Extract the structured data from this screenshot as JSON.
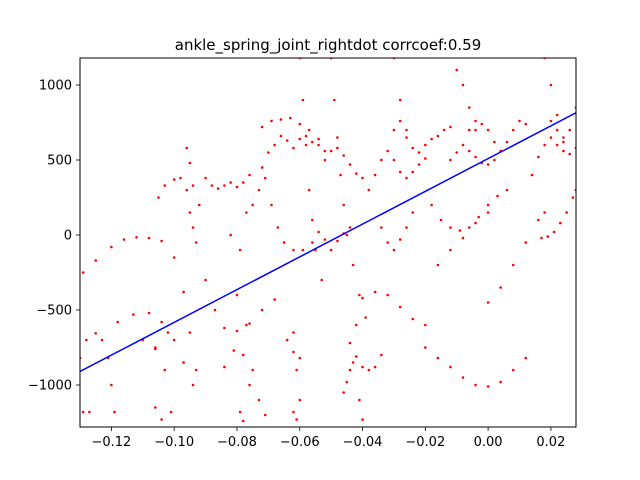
{
  "chart_data": {
    "type": "scatter",
    "title": "ankle_spring_joint_rightdot corrcoef:0.59",
    "xlabel": "",
    "ylabel": "",
    "xlim": [
      -0.13,
      0.028
    ],
    "ylim": [
      -1280,
      1180
    ],
    "xticks": [
      -0.12,
      -0.1,
      -0.08,
      -0.06,
      -0.04,
      -0.02,
      0.0,
      0.02
    ],
    "xtick_labels": [
      "−0.12",
      "−0.10",
      "−0.08",
      "−0.06",
      "−0.04",
      "−0.02",
      "0.00",
      "0.02"
    ],
    "yticks": [
      -1000,
      -500,
      0,
      500,
      1000
    ],
    "ytick_labels": [
      "−1000",
      "−500",
      "0",
      "500",
      "1000"
    ],
    "grid": false,
    "legend": "none",
    "scatter_color": "#ff0000",
    "fit_color": "#0000ff",
    "fit_line": {
      "x": [
        -0.13,
        0.028
      ],
      "y": [
        -910,
        815
      ]
    },
    "series": [
      {
        "values": [
          [
            -0.13,
            -820
          ],
          [
            -0.128,
            -700
          ],
          [
            -0.125,
            -655
          ],
          [
            -0.123,
            -700
          ],
          [
            -0.121,
            -820
          ],
          [
            -0.12,
            -1000
          ],
          [
            -0.119,
            -1180
          ],
          [
            -0.129,
            -1180
          ],
          [
            -0.127,
            -1180
          ],
          [
            -0.129,
            -250
          ],
          [
            -0.125,
            -170
          ],
          [
            -0.12,
            -80
          ],
          [
            -0.116,
            -30
          ],
          [
            -0.112,
            -15
          ],
          [
            -0.108,
            -20
          ],
          [
            -0.104,
            -40
          ],
          [
            -0.1,
            -150
          ],
          [
            -0.097,
            -380
          ],
          [
            -0.095,
            -650
          ],
          [
            -0.093,
            -900
          ],
          [
            -0.118,
            -580
          ],
          [
            -0.113,
            -530
          ],
          [
            -0.108,
            -520
          ],
          [
            -0.104,
            -580
          ],
          [
            -0.1,
            -700
          ],
          [
            -0.097,
            -850
          ],
          [
            -0.094,
            -1000
          ],
          [
            -0.11,
            -700
          ],
          [
            -0.106,
            -750
          ],
          [
            -0.103,
            -900
          ],
          [
            -0.106,
            -1150
          ],
          [
            -0.104,
            -1230
          ],
          [
            -0.106,
            -760
          ],
          [
            -0.102,
            -650
          ],
          [
            -0.101,
            -1180
          ],
          [
            -0.105,
            250
          ],
          [
            -0.103,
            330
          ],
          [
            -0.1,
            370
          ],
          [
            -0.098,
            380
          ],
          [
            -0.096,
            300
          ],
          [
            -0.095,
            150
          ],
          [
            -0.094,
            50
          ],
          [
            -0.093,
            -50
          ],
          [
            -0.09,
            -300
          ],
          [
            -0.087,
            -500
          ],
          [
            -0.084,
            -620
          ],
          [
            -0.08,
            -640
          ],
          [
            -0.076,
            -590
          ],
          [
            -0.072,
            -500
          ],
          [
            -0.068,
            -430
          ],
          [
            -0.096,
            580
          ],
          [
            -0.095,
            480
          ],
          [
            -0.094,
            330
          ],
          [
            -0.092,
            200
          ],
          [
            -0.09,
            380
          ],
          [
            -0.088,
            330
          ],
          [
            -0.086,
            310
          ],
          [
            -0.084,
            330
          ],
          [
            -0.082,
            350
          ],
          [
            -0.08,
            320
          ],
          [
            -0.078,
            350
          ],
          [
            -0.076,
            400
          ],
          [
            -0.082,
            0
          ],
          [
            -0.079,
            -100
          ],
          [
            -0.077,
            150
          ],
          [
            -0.075,
            200
          ],
          [
            -0.073,
            300
          ],
          [
            -0.071,
            380
          ],
          [
            -0.069,
            200
          ],
          [
            -0.067,
            50
          ],
          [
            -0.065,
            -50
          ],
          [
            -0.062,
            -100
          ],
          [
            -0.059,
            -100
          ],
          [
            -0.056,
            -50
          ],
          [
            -0.084,
            -880
          ],
          [
            -0.081,
            -770
          ],
          [
            -0.078,
            -800
          ],
          [
            -0.076,
            -1000
          ],
          [
            -0.079,
            -1180
          ],
          [
            -0.078,
            -1240
          ],
          [
            -0.08,
            -400
          ],
          [
            -0.077,
            -600
          ],
          [
            -0.075,
            -900
          ],
          [
            -0.073,
            -1100
          ],
          [
            -0.071,
            -1200
          ],
          [
            -0.072,
            450
          ],
          [
            -0.07,
            550
          ],
          [
            -0.068,
            600
          ],
          [
            -0.066,
            660
          ],
          [
            -0.064,
            630
          ],
          [
            -0.062,
            580
          ],
          [
            -0.06,
            640
          ],
          [
            -0.058,
            660
          ],
          [
            -0.056,
            620
          ],
          [
            -0.054,
            600
          ],
          [
            -0.052,
            560
          ],
          [
            -0.072,
            720
          ],
          [
            -0.069,
            760
          ],
          [
            -0.066,
            770
          ],
          [
            -0.063,
            780
          ],
          [
            -0.06,
            740
          ],
          [
            -0.057,
            700
          ],
          [
            -0.054,
            640
          ],
          [
            -0.062,
            -650
          ],
          [
            -0.061,
            -900
          ],
          [
            -0.06,
            -1100
          ],
          [
            -0.061,
            -1230
          ],
          [
            -0.062,
            -1180
          ],
          [
            -0.064,
            -700
          ],
          [
            -0.062,
            -780
          ],
          [
            -0.06,
            -820
          ],
          [
            -0.06,
            1180
          ],
          [
            -0.059,
            900
          ],
          [
            -0.058,
            600
          ],
          [
            -0.057,
            300
          ],
          [
            -0.056,
            100
          ],
          [
            -0.055,
            -100
          ],
          [
            -0.053,
            -300
          ],
          [
            -0.05,
            1180
          ],
          [
            -0.049,
            900
          ],
          [
            -0.048,
            650
          ],
          [
            -0.047,
            400
          ],
          [
            -0.046,
            200
          ],
          [
            -0.045,
            0
          ],
          [
            -0.043,
            -200
          ],
          [
            -0.041,
            -400
          ],
          [
            -0.039,
            -550
          ],
          [
            -0.054,
            20
          ],
          [
            -0.052,
            -30
          ],
          [
            -0.05,
            -100
          ],
          [
            -0.048,
            -40
          ],
          [
            -0.046,
            10
          ],
          [
            -0.044,
            50
          ],
          [
            -0.052,
            500
          ],
          [
            -0.05,
            560
          ],
          [
            -0.048,
            580
          ],
          [
            -0.046,
            530
          ],
          [
            -0.044,
            470
          ],
          [
            -0.042,
            410
          ],
          [
            -0.04,
            380
          ],
          [
            -0.046,
            -1050
          ],
          [
            -0.045,
            -980
          ],
          [
            -0.044,
            -900
          ],
          [
            -0.043,
            -850
          ],
          [
            -0.042,
            -600
          ],
          [
            -0.041,
            -1100
          ],
          [
            -0.04,
            -1230
          ],
          [
            -0.044,
            -720
          ],
          [
            -0.042,
            -810
          ],
          [
            -0.04,
            -880
          ],
          [
            -0.038,
            -900
          ],
          [
            -0.036,
            -880
          ],
          [
            -0.034,
            -800
          ],
          [
            -0.04,
            -420
          ],
          [
            -0.036,
            -380
          ],
          [
            -0.032,
            -400
          ],
          [
            -0.028,
            -480
          ],
          [
            -0.024,
            -560
          ],
          [
            -0.02,
            -600
          ],
          [
            -0.038,
            300
          ],
          [
            -0.036,
            400
          ],
          [
            -0.034,
            500
          ],
          [
            -0.032,
            560
          ],
          [
            -0.03,
            500
          ],
          [
            -0.028,
            420
          ],
          [
            -0.026,
            380
          ],
          [
            -0.024,
            420
          ],
          [
            -0.022,
            470
          ],
          [
            -0.02,
            510
          ],
          [
            -0.034,
            50
          ],
          [
            -0.032,
            -50
          ],
          [
            -0.03,
            -100
          ],
          [
            -0.028,
            -30
          ],
          [
            -0.026,
            50
          ],
          [
            -0.024,
            150
          ],
          [
            -0.03,
            700
          ],
          [
            -0.028,
            760
          ],
          [
            -0.026,
            650
          ],
          [
            -0.024,
            580
          ],
          [
            -0.022,
            550
          ],
          [
            -0.02,
            600
          ],
          [
            -0.018,
            640
          ],
          [
            -0.016,
            660
          ],
          [
            -0.014,
            700
          ],
          [
            -0.012,
            720
          ],
          [
            -0.02,
            -750
          ],
          [
            -0.016,
            -820
          ],
          [
            -0.012,
            -880
          ],
          [
            -0.008,
            -950
          ],
          [
            -0.004,
            -1000
          ],
          [
            0.0,
            -1010
          ],
          [
            0.004,
            -980
          ],
          [
            0.008,
            -900
          ],
          [
            0.012,
            -820
          ],
          [
            -0.018,
            200
          ],
          [
            -0.015,
            100
          ],
          [
            -0.012,
            50
          ],
          [
            -0.009,
            30
          ],
          [
            -0.006,
            50
          ],
          [
            -0.003,
            120
          ],
          [
            0.0,
            200
          ],
          [
            0.003,
            260
          ],
          [
            0.006,
            300
          ],
          [
            -0.016,
            -200
          ],
          [
            -0.012,
            -100
          ],
          [
            -0.008,
            -20
          ],
          [
            -0.004,
            80
          ],
          [
            0.0,
            150
          ],
          [
            -0.03,
            1180
          ],
          [
            -0.028,
            900
          ],
          [
            -0.026,
            700
          ],
          [
            -0.012,
            500
          ],
          [
            -0.01,
            550
          ],
          [
            -0.008,
            600
          ],
          [
            -0.006,
            560
          ],
          [
            -0.004,
            520
          ],
          [
            -0.002,
            480
          ],
          [
            0.0,
            470
          ],
          [
            0.002,
            500
          ],
          [
            0.004,
            560
          ],
          [
            0.006,
            620
          ],
          [
            0.008,
            700
          ],
          [
            0.01,
            760
          ],
          [
            0.012,
            740
          ],
          [
            -0.006,
            700
          ],
          [
            -0.004,
            760
          ],
          [
            -0.002,
            740
          ],
          [
            0.0,
            700
          ],
          [
            0.002,
            620
          ],
          [
            0.004,
            560
          ],
          [
            -0.01,
            1100
          ],
          [
            -0.008,
            1000
          ],
          [
            -0.006,
            850
          ],
          [
            -0.004,
            700
          ],
          [
            0.0,
            -450
          ],
          [
            0.004,
            -350
          ],
          [
            0.008,
            -200
          ],
          [
            0.012,
            -50
          ],
          [
            0.016,
            100
          ],
          [
            0.018,
            150
          ],
          [
            0.014,
            400
          ],
          [
            0.016,
            520
          ],
          [
            0.018,
            600
          ],
          [
            0.02,
            650
          ],
          [
            0.022,
            600
          ],
          [
            0.024,
            560
          ],
          [
            0.026,
            540
          ],
          [
            0.028,
            580
          ],
          [
            0.017,
            -20
          ],
          [
            0.019,
            -10
          ],
          [
            0.021,
            20
          ],
          [
            0.023,
            80
          ],
          [
            0.025,
            150
          ],
          [
            0.027,
            250
          ],
          [
            0.028,
            300
          ],
          [
            0.018,
            1180
          ],
          [
            0.02,
            1000
          ],
          [
            0.022,
            800
          ],
          [
            0.024,
            620
          ],
          [
            0.026,
            700
          ],
          [
            0.028,
            850
          ],
          [
            0.02,
            760
          ],
          [
            0.022,
            700
          ],
          [
            0.024,
            650
          ]
        ]
      }
    ]
  }
}
